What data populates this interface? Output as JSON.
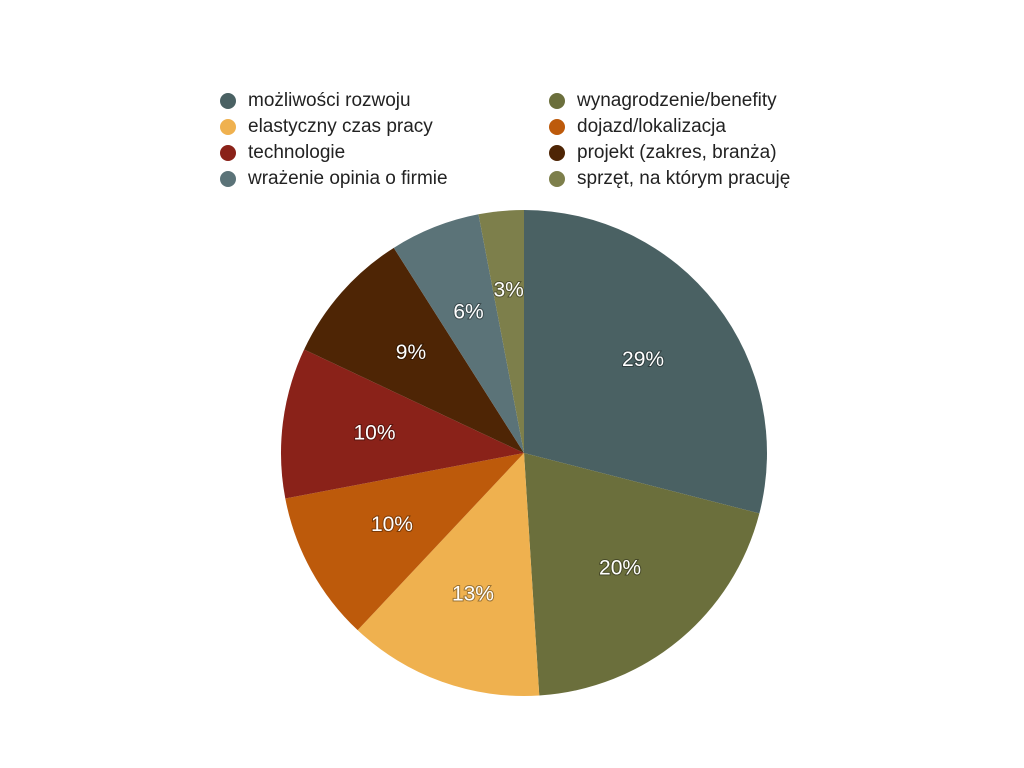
{
  "chart_data": {
    "type": "pie",
    "categories": [
      "możliwości rozwoju",
      "wynagrodzenie/benefity",
      "elastyczny czas pracy",
      "dojazd/lokalizacja",
      "technologie",
      "projekt (zakres, branża)",
      "wrażenie opinia o firmie",
      "sprzęt, na którym pracuję"
    ],
    "values": [
      29,
      20,
      13,
      10,
      10,
      9,
      6,
      3
    ],
    "value_labels": [
      "29%",
      "20%",
      "13%",
      "10%",
      "10%",
      "9%",
      "6%",
      "3%"
    ],
    "colors": [
      "#4a6163",
      "#6b6f3c",
      "#efb14f",
      "#bd5a0b",
      "#8a2219",
      "#4e2505",
      "#5b7378",
      "#7d7f4b"
    ]
  }
}
